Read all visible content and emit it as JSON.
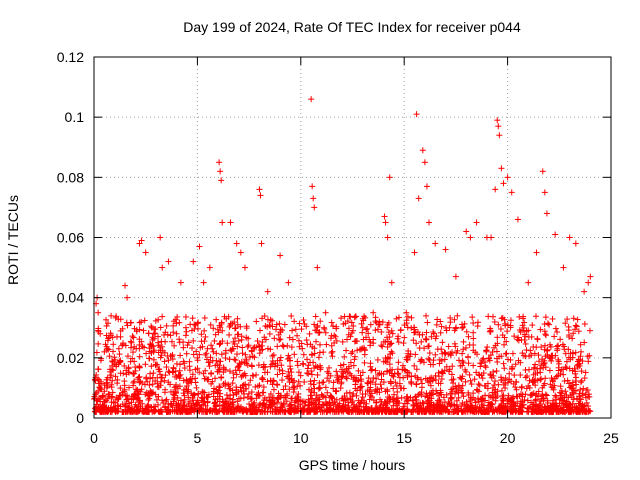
{
  "chart_data": {
    "type": "scatter",
    "title": "Day 199 of 2024, Rate Of TEC Index for receiver p044",
    "xlabel": "GPS time / hours",
    "ylabel": "ROTI / TECUs",
    "xlim": [
      0,
      25
    ],
    "ylim": [
      0,
      0.12
    ],
    "x_ticks": [
      0,
      5,
      10,
      15,
      20,
      25
    ],
    "x_tick_labels": [
      "0",
      "5",
      "10",
      "15",
      "20",
      "25"
    ],
    "y_ticks": [
      0,
      0.02,
      0.04,
      0.06,
      0.08,
      0.1,
      0.12
    ],
    "y_tick_labels": [
      "0",
      "0.02",
      "0.04",
      "0.06",
      "0.08",
      "0.1",
      "0.12"
    ],
    "grid": true,
    "marker": "+",
    "color": "#ff0000",
    "series": [
      {
        "name": "ROTI",
        "points": [
          [
            0.1,
            0.038
          ],
          [
            0.15,
            0.04
          ],
          [
            0.2,
            0.035
          ],
          [
            0.3,
            0.028
          ],
          [
            0.5,
            0.022
          ],
          [
            1.0,
            0.018
          ],
          [
            1.5,
            0.044
          ],
          [
            1.6,
            0.04
          ],
          [
            2.2,
            0.058
          ],
          [
            2.3,
            0.059
          ],
          [
            2.5,
            0.055
          ],
          [
            2.8,
            0.03
          ],
          [
            3.2,
            0.06
          ],
          [
            3.3,
            0.05
          ],
          [
            3.6,
            0.052
          ],
          [
            4.2,
            0.045
          ],
          [
            4.8,
            0.052
          ],
          [
            5.1,
            0.057
          ],
          [
            5.3,
            0.045
          ],
          [
            5.6,
            0.05
          ],
          [
            6.05,
            0.085
          ],
          [
            6.1,
            0.082
          ],
          [
            6.15,
            0.079
          ],
          [
            6.2,
            0.065
          ],
          [
            6.6,
            0.065
          ],
          [
            6.9,
            0.058
          ],
          [
            7.1,
            0.055
          ],
          [
            7.3,
            0.05
          ],
          [
            8.0,
            0.076
          ],
          [
            8.05,
            0.074
          ],
          [
            8.1,
            0.058
          ],
          [
            8.4,
            0.042
          ],
          [
            9.0,
            0.054
          ],
          [
            9.4,
            0.045
          ],
          [
            10.5,
            0.106
          ],
          [
            10.55,
            0.077
          ],
          [
            10.6,
            0.073
          ],
          [
            10.65,
            0.07
          ],
          [
            10.8,
            0.05
          ],
          [
            11.2,
            0.035
          ],
          [
            12.5,
            0.022
          ],
          [
            13.0,
            0.03
          ],
          [
            13.5,
            0.035
          ],
          [
            14.05,
            0.067
          ],
          [
            14.1,
            0.065
          ],
          [
            14.2,
            0.06
          ],
          [
            14.3,
            0.08
          ],
          [
            14.4,
            0.045
          ],
          [
            15.1,
            0.035
          ],
          [
            15.5,
            0.055
          ],
          [
            15.6,
            0.101
          ],
          [
            15.7,
            0.073
          ],
          [
            15.9,
            0.089
          ],
          [
            16.0,
            0.085
          ],
          [
            16.1,
            0.077
          ],
          [
            16.2,
            0.065
          ],
          [
            16.5,
            0.058
          ],
          [
            17.0,
            0.056
          ],
          [
            17.5,
            0.047
          ],
          [
            18.0,
            0.062
          ],
          [
            18.2,
            0.06
          ],
          [
            18.5,
            0.065
          ],
          [
            19.0,
            0.06
          ],
          [
            19.2,
            0.06
          ],
          [
            19.4,
            0.076
          ],
          [
            19.5,
            0.099
          ],
          [
            19.55,
            0.097
          ],
          [
            19.6,
            0.094
          ],
          [
            19.7,
            0.083
          ],
          [
            19.8,
            0.078
          ],
          [
            20.0,
            0.08
          ],
          [
            20.2,
            0.075
          ],
          [
            20.5,
            0.066
          ],
          [
            21.0,
            0.045
          ],
          [
            21.4,
            0.055
          ],
          [
            21.7,
            0.082
          ],
          [
            21.8,
            0.075
          ],
          [
            21.9,
            0.068
          ],
          [
            22.3,
            0.061
          ],
          [
            22.7,
            0.05
          ],
          [
            23.0,
            0.06
          ],
          [
            23.3,
            0.058
          ],
          [
            23.7,
            0.042
          ],
          [
            23.9,
            0.045
          ],
          [
            24.0,
            0.047
          ]
        ]
      }
    ]
  }
}
